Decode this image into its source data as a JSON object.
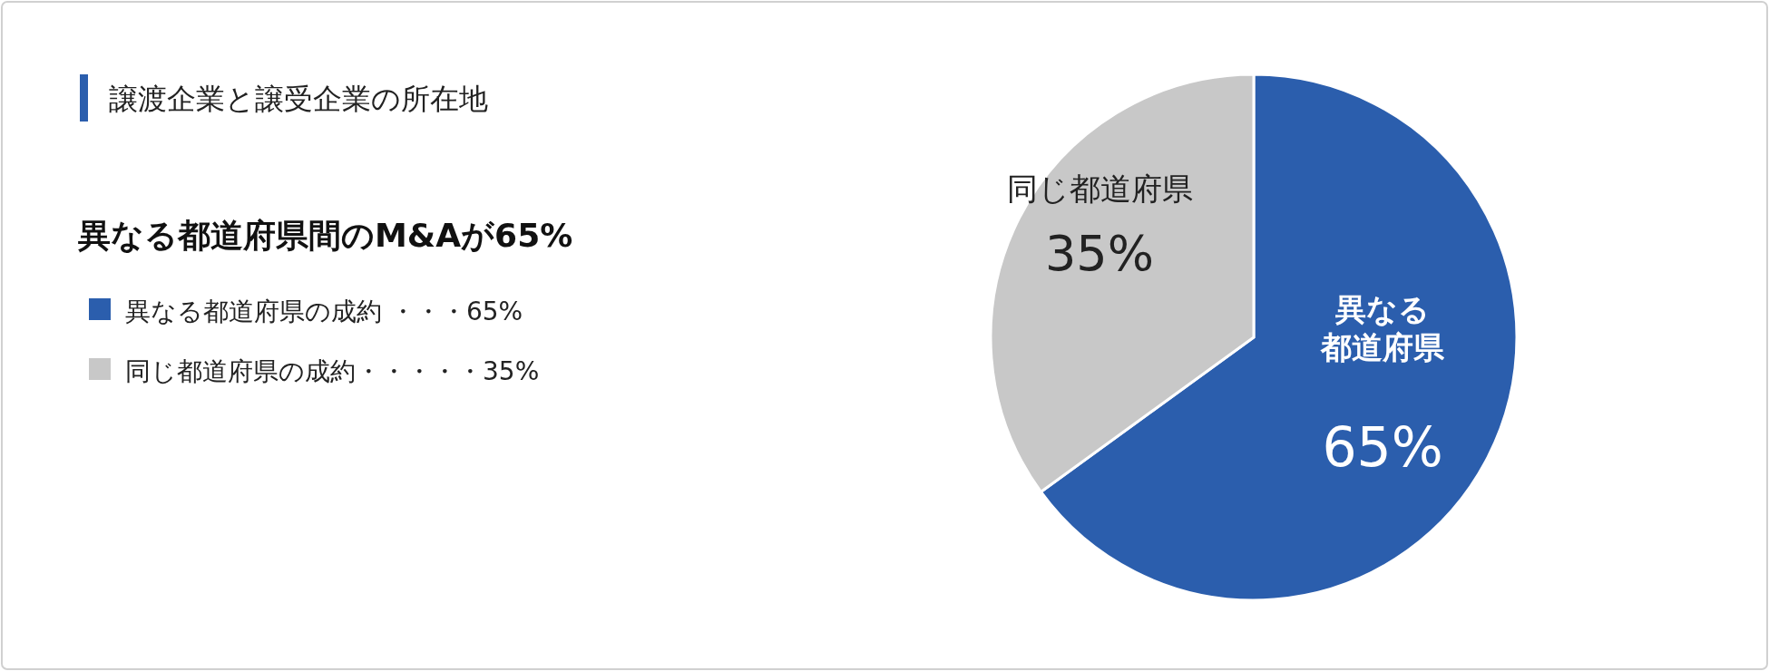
{
  "chart_data": {
    "type": "pie",
    "title": "譲渡企業と譲受企業の所在地",
    "subtitle": "異なる都道府県間のM&Aが65%",
    "categories": [
      "異なる都道府県",
      "同じ都道府県"
    ],
    "values": [
      65,
      35
    ],
    "value_labels": [
      "65%",
      "35%"
    ],
    "colors": [
      "#2b5ead",
      "#c8c8c8"
    ],
    "annotations": [
      "異なる都道府県の成約 ・・・65%",
      "同じ都道府県の成約・・・・・35%"
    ]
  }
}
